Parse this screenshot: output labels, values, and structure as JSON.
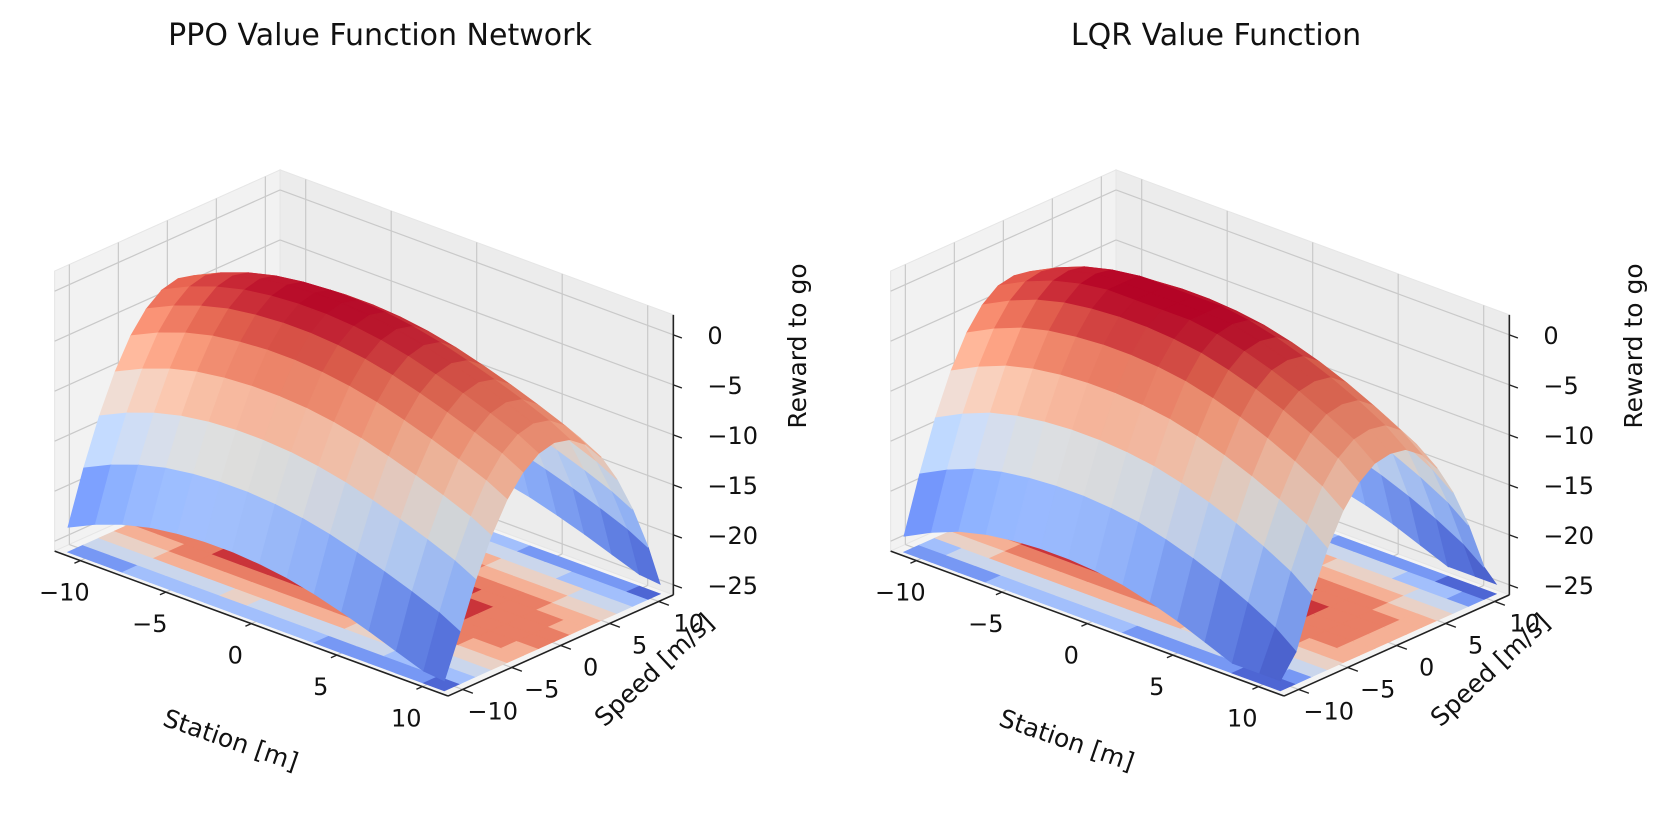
{
  "chart_data": [
    {
      "type": "surface",
      "title": "PPO Value Function Network",
      "xlabel": "Station [m]",
      "ylabel": "Speed [m/s]",
      "zlabel": "Reward to go",
      "x_ticks": [
        "−10",
        "−5",
        "0",
        "5",
        "10"
      ],
      "y_ticks": [
        "−10",
        "−5",
        "0",
        "5",
        "10"
      ],
      "z_ticks": [
        "0",
        "−5",
        "−10",
        "−15",
        "−20",
        "−25"
      ],
      "xlim": [
        -10,
        10
      ],
      "ylim": [
        -10,
        10
      ],
      "zlim": [
        -25,
        0
      ],
      "colormap": "coolwarm",
      "contour_projection": "bottom",
      "grid": true,
      "surface": {
        "x": [
          -11,
          -9.4,
          -7.8,
          -6.2,
          -4.6,
          -3,
          -1.4,
          0.2,
          1.8,
          3.4,
          5,
          6.6,
          8.2,
          9.8,
          11
        ],
        "y": [
          -11,
          -9.4,
          -7.8,
          -6.2,
          -4.6,
          -3,
          -1.4,
          0.2,
          1.8,
          3.4,
          5,
          6.6,
          8.2,
          9.8,
          11
        ],
        "z": [
          [
            -23.5,
            -22.2,
            -21.2,
            -20.5,
            -20.1,
            -19.9,
            -19.9,
            -20.1,
            -20.5,
            -21.1,
            -21.9,
            -22.8,
            -23.8,
            -24.8,
            -25.0
          ],
          [
            -18.3,
            -17.0,
            -16.0,
            -15.3,
            -14.9,
            -14.7,
            -14.7,
            -14.9,
            -15.3,
            -15.9,
            -16.7,
            -17.6,
            -18.6,
            -19.7,
            -20.8
          ],
          [
            -13.8,
            -12.5,
            -11.5,
            -10.8,
            -10.4,
            -10.2,
            -10.2,
            -10.4,
            -10.8,
            -11.4,
            -12.2,
            -13.1,
            -14.1,
            -15.2,
            -16.3
          ],
          [
            -10.1,
            -8.8,
            -7.8,
            -7.1,
            -6.7,
            -6.5,
            -6.5,
            -6.7,
            -7.1,
            -7.7,
            -8.5,
            -9.4,
            -10.4,
            -11.5,
            -12.6
          ],
          [
            -7.2,
            -5.9,
            -4.9,
            -4.2,
            -3.8,
            -3.6,
            -3.6,
            -3.8,
            -4.2,
            -4.8,
            -5.6,
            -6.5,
            -7.5,
            -8.6,
            -9.7
          ],
          [
            -5.2,
            -3.9,
            -2.9,
            -2.2,
            -1.8,
            -1.6,
            -1.6,
            -1.8,
            -2.2,
            -2.8,
            -3.6,
            -4.5,
            -5.5,
            -6.6,
            -7.7
          ],
          [
            -4.0,
            -2.7,
            -1.7,
            -1.0,
            -0.6,
            -0.4,
            -0.4,
            -0.6,
            -1.0,
            -1.6,
            -2.4,
            -3.3,
            -4.3,
            -5.4,
            -6.5
          ],
          [
            -3.6,
            -2.3,
            -1.3,
            -0.6,
            -0.2,
            0.0,
            0.0,
            -0.2,
            -0.6,
            -1.2,
            -2.0,
            -2.9,
            -3.9,
            -5.0,
            -6.1
          ],
          [
            -4.0,
            -2.7,
            -1.7,
            -1.0,
            -0.6,
            -0.4,
            -0.4,
            -0.6,
            -1.0,
            -1.6,
            -2.4,
            -3.3,
            -4.3,
            -5.4,
            -6.5
          ],
          [
            -5.2,
            -3.9,
            -2.9,
            -2.2,
            -1.8,
            -1.6,
            -1.6,
            -1.8,
            -2.2,
            -2.8,
            -3.6,
            -4.5,
            -5.5,
            -6.6,
            -7.7
          ],
          [
            -7.2,
            -5.9,
            -4.9,
            -4.2,
            -3.8,
            -3.6,
            -3.6,
            -3.8,
            -4.2,
            -4.8,
            -5.6,
            -6.5,
            -7.5,
            -8.6,
            -9.7
          ],
          [
            -10.1,
            -8.8,
            -7.8,
            -7.1,
            -6.7,
            -6.5,
            -6.5,
            -6.7,
            -7.1,
            -7.7,
            -8.5,
            -9.4,
            -10.4,
            -11.5,
            -12.6
          ],
          [
            -13.8,
            -12.5,
            -11.5,
            -10.8,
            -10.4,
            -10.2,
            -10.2,
            -10.4,
            -10.8,
            -11.4,
            -12.2,
            -13.1,
            -14.1,
            -15.2,
            -16.3
          ],
          [
            -18.3,
            -17.0,
            -16.0,
            -15.3,
            -14.9,
            -14.7,
            -14.7,
            -14.9,
            -15.3,
            -15.9,
            -16.7,
            -17.6,
            -18.6,
            -19.7,
            -20.8
          ],
          [
            -23.5,
            -22.2,
            -21.2,
            -20.5,
            -20.1,
            -19.9,
            -19.9,
            -20.1,
            -20.5,
            -21.1,
            -21.9,
            -22.8,
            -23.8,
            -24.8,
            -25.0
          ]
        ]
      }
    },
    {
      "type": "surface",
      "title": "LQR Value Function",
      "xlabel": "Station [m]",
      "ylabel": "Speed [m/s]",
      "zlabel": "Reward to go",
      "x_ticks": [
        "−10",
        "−5",
        "0",
        "5",
        "10"
      ],
      "y_ticks": [
        "−10",
        "−5",
        "0",
        "5",
        "10"
      ],
      "z_ticks": [
        "0",
        "−5",
        "−10",
        "−15",
        "−20",
        "−25"
      ],
      "xlim": [
        -10,
        10
      ],
      "ylim": [
        -10,
        10
      ],
      "zlim": [
        -25,
        0
      ],
      "colormap": "coolwarm",
      "contour_projection": "bottom",
      "grid": true,
      "surface": {
        "x": [
          -11,
          -9.4,
          -7.8,
          -6.2,
          -4.6,
          -3,
          -1.4,
          0.2,
          1.8,
          3.4,
          5,
          6.6,
          8.2,
          9.8,
          11
        ],
        "y": [
          -11,
          -9.4,
          -7.8,
          -6.2,
          -4.6,
          -3,
          -1.4,
          0.2,
          1.8,
          3.4,
          5,
          6.6,
          8.2,
          9.8,
          11
        ],
        "z": [
          [
            -24.4,
            -23.0,
            -21.9,
            -21.2,
            -20.8,
            -20.6,
            -20.6,
            -20.8,
            -21.2,
            -21.9,
            -22.8,
            -23.9,
            -25.0,
            -25.0,
            -25.0
          ],
          [
            -18.9,
            -17.5,
            -16.4,
            -15.7,
            -15.3,
            -15.1,
            -15.1,
            -15.3,
            -15.7,
            -16.4,
            -17.3,
            -18.4,
            -19.7,
            -21.2,
            -22.8
          ],
          [
            -14.0,
            -12.6,
            -11.5,
            -10.8,
            -10.4,
            -10.2,
            -10.2,
            -10.4,
            -10.8,
            -11.5,
            -12.4,
            -13.5,
            -14.8,
            -16.3,
            -17.9
          ],
          [
            -10.0,
            -8.6,
            -7.5,
            -6.8,
            -6.4,
            -6.2,
            -6.2,
            -6.4,
            -6.8,
            -7.5,
            -8.4,
            -9.5,
            -10.8,
            -12.3,
            -13.9
          ],
          [
            -6.9,
            -5.5,
            -4.4,
            -3.7,
            -3.3,
            -3.1,
            -3.1,
            -3.3,
            -3.7,
            -4.4,
            -5.3,
            -6.4,
            -7.7,
            -9.2,
            -10.8
          ],
          [
            -4.8,
            -3.4,
            -2.3,
            -1.6,
            -1.2,
            -1.0,
            -1.0,
            -1.2,
            -1.6,
            -2.3,
            -3.2,
            -4.3,
            -5.6,
            -7.1,
            -8.7
          ],
          [
            -3.6,
            -2.2,
            -1.1,
            -0.4,
            0.0,
            0.0,
            0.0,
            0.0,
            -0.4,
            -1.1,
            -2.0,
            -3.1,
            -4.4,
            -5.9,
            -7.5
          ],
          [
            -3.3,
            -1.9,
            -0.8,
            -0.1,
            0.0,
            0.0,
            0.0,
            0.0,
            -0.1,
            -0.8,
            -1.7,
            -2.8,
            -4.1,
            -5.6,
            -7.2
          ],
          [
            -3.6,
            -2.2,
            -1.1,
            -0.4,
            0.0,
            0.0,
            0.0,
            0.0,
            -0.4,
            -1.1,
            -2.0,
            -3.1,
            -4.4,
            -5.9,
            -7.5
          ],
          [
            -4.8,
            -3.4,
            -2.3,
            -1.6,
            -1.2,
            -1.0,
            -1.0,
            -1.2,
            -1.6,
            -2.3,
            -3.2,
            -4.3,
            -5.6,
            -7.1,
            -8.7
          ],
          [
            -6.9,
            -5.5,
            -4.4,
            -3.7,
            -3.3,
            -3.1,
            -3.1,
            -3.3,
            -3.7,
            -4.4,
            -5.3,
            -6.4,
            -7.7,
            -9.2,
            -10.8
          ],
          [
            -10.0,
            -8.6,
            -7.5,
            -6.8,
            -6.4,
            -6.2,
            -6.2,
            -6.4,
            -6.8,
            -7.5,
            -8.4,
            -9.5,
            -10.8,
            -12.3,
            -13.9
          ],
          [
            -14.0,
            -12.6,
            -11.5,
            -10.8,
            -10.4,
            -10.2,
            -10.2,
            -10.4,
            -10.8,
            -11.5,
            -12.4,
            -13.5,
            -14.8,
            -16.3,
            -17.9
          ],
          [
            -18.9,
            -17.5,
            -16.4,
            -15.7,
            -15.3,
            -15.1,
            -15.1,
            -15.3,
            -15.7,
            -16.4,
            -17.3,
            -18.4,
            -19.7,
            -21.2,
            -22.8
          ],
          [
            -24.4,
            -23.0,
            -21.9,
            -21.2,
            -20.8,
            -20.6,
            -20.6,
            -20.8,
            -21.2,
            -21.9,
            -22.8,
            -23.9,
            -25.0,
            -25.0,
            -25.0
          ]
        ]
      }
    }
  ]
}
